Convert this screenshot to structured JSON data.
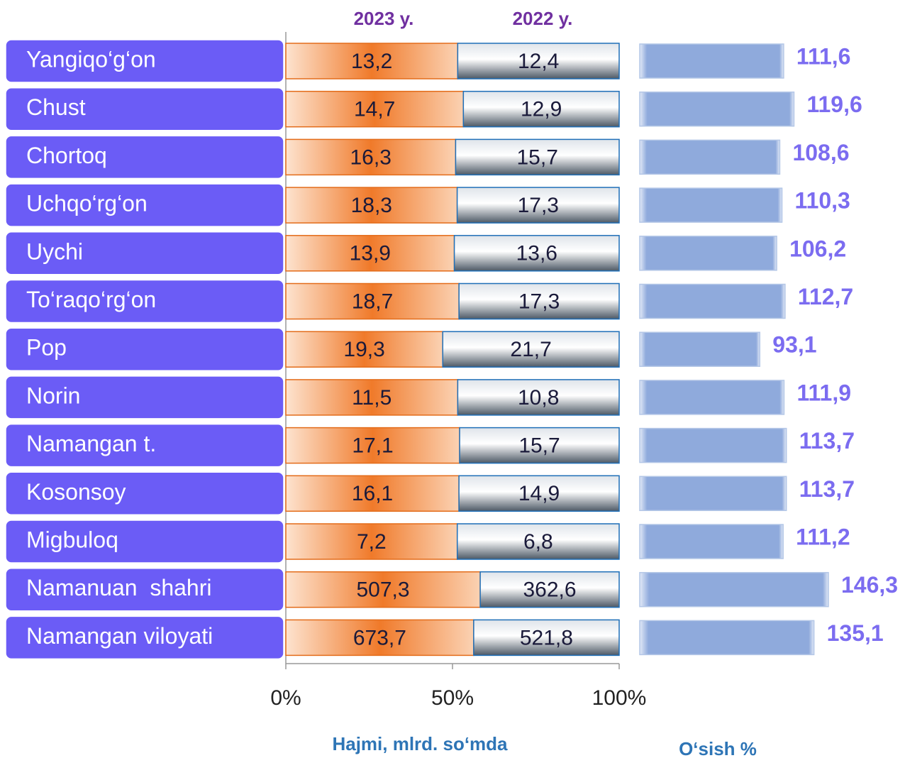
{
  "chart_data": [
    {
      "type": "stacked-percent-bar",
      "categories": [
        "Yangiqo‘g‘on",
        "Chust",
        "Chortoq",
        "Uchqo‘rg‘on",
        "Uychi",
        "To‘raqo‘rg‘on",
        "Pop",
        "Norin",
        "Namangan t.",
        "Kosonsoy",
        "Migbuloq",
        "Namanuan  shahri",
        "Namangan viloyati"
      ],
      "series": [
        {
          "name": "2023 y.",
          "color": "#f07a2a",
          "values": [
            13.2,
            14.7,
            16.3,
            18.3,
            13.9,
            18.7,
            19.3,
            11.5,
            17.1,
            16.1,
            7.2,
            507.3,
            673.7
          ],
          "value_labels": [
            "13,2",
            "14,7",
            "16,3",
            "18,3",
            "13,9",
            "18,7",
            "19,3",
            "11,5",
            "17,1",
            "16,1",
            "7,2",
            "507,3",
            "673,7"
          ]
        },
        {
          "name": "2022 y.",
          "color": "#9aa3ad",
          "values": [
            12.4,
            12.9,
            15.7,
            17.3,
            13.6,
            17.3,
            21.7,
            10.8,
            15.7,
            14.9,
            6.8,
            362.6,
            521.8
          ],
          "value_labels": [
            "12,4",
            "12,9",
            "15,7",
            "17,3",
            "13,6",
            "17,3",
            "21,7",
            "10,8",
            "15,7",
            "14,9",
            "6,8",
            "362,6",
            "521,8"
          ]
        }
      ],
      "xlim": [
        0,
        100
      ],
      "xticks": [
        {
          "value": 0,
          "label": "0%"
        },
        {
          "value": 50,
          "label": "50%"
        },
        {
          "value": 100,
          "label": "100%"
        }
      ],
      "xlabel": "Hajmi, mlrd. so‘mda"
    },
    {
      "type": "bar",
      "color": "#8faadc",
      "values": [
        111.6,
        119.6,
        108.6,
        110.3,
        106.2,
        112.7,
        93.1,
        111.9,
        113.7,
        113.7,
        111.2,
        146.3,
        135.1
      ],
      "value_labels": [
        "111,6",
        "119,6",
        "108,6",
        "110,3",
        "106,2",
        "112,7",
        "93,1",
        "111,9",
        "113,7",
        "113,7",
        "111,2",
        "146,3",
        "135,1"
      ],
      "xlabel": "O‘sish %"
    }
  ]
}
